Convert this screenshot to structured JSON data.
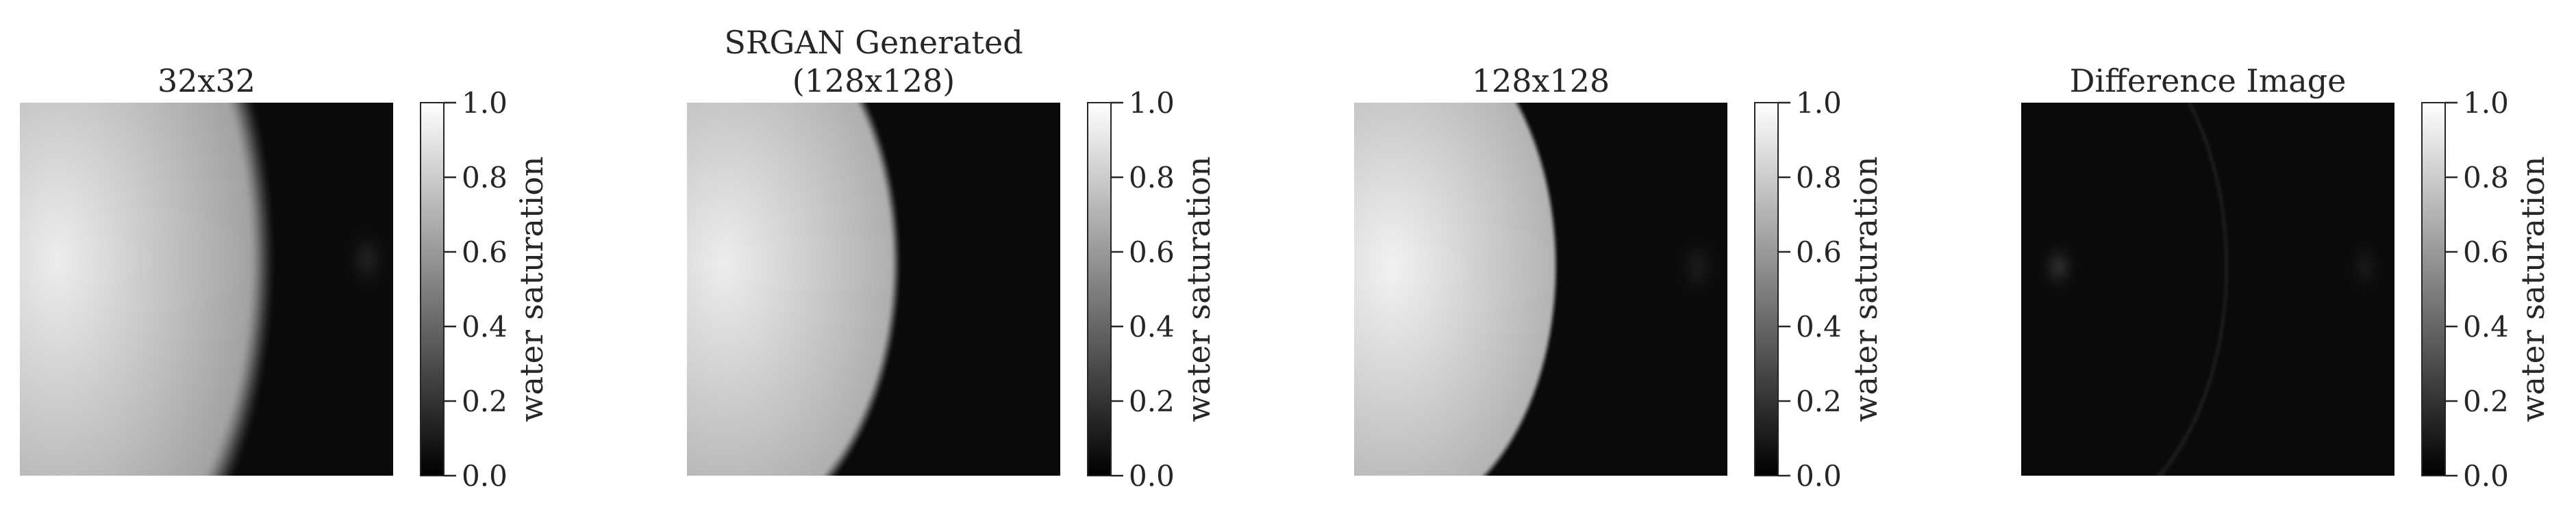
{
  "chart_data": [
    {
      "type": "heatmap",
      "title": "32x32",
      "colorbar": {
        "label": "water saturation",
        "ticks": [
          "0.0",
          "0.2",
          "0.4",
          "0.6",
          "0.8",
          "1.0"
        ],
        "range": [
          0,
          1
        ],
        "colormap": "gray"
      },
      "plume": {
        "center_x": 0.1,
        "center_y": 0.42,
        "radius_x": 0.55,
        "radius_y": 0.95,
        "peak": 0.93,
        "edge": 0.62,
        "blur": 0.07
      },
      "artifact": {
        "x": 0.93,
        "y": 0.42,
        "value": 0.08
      }
    },
    {
      "type": "heatmap",
      "title": "SRGAN Generated\n(128x128)",
      "colorbar": {
        "label": "water saturation",
        "ticks": [
          "0.0",
          "0.2",
          "0.4",
          "0.6",
          "0.8",
          "1.0"
        ],
        "range": [
          0,
          1
        ],
        "colormap": "gray"
      },
      "plume": {
        "center_x": 0.1,
        "center_y": 0.43,
        "radius_x": 0.46,
        "radius_y": 0.72,
        "peak": 0.93,
        "edge": 0.68,
        "blur": 0.035
      },
      "artifact": null
    },
    {
      "type": "heatmap",
      "title": "128x128",
      "colorbar": {
        "label": "water saturation",
        "ticks": [
          "0.0",
          "0.2",
          "0.4",
          "0.6",
          "0.8",
          "1.0"
        ],
        "range": [
          0,
          1
        ],
        "colormap": "gray"
      },
      "plume": {
        "center_x": 0.1,
        "center_y": 0.44,
        "radius_x": 0.44,
        "radius_y": 0.68,
        "peak": 0.95,
        "edge": 0.7,
        "blur": 0.02
      },
      "artifact": {
        "x": 0.92,
        "y": 0.44,
        "value": 0.06
      }
    },
    {
      "type": "heatmap",
      "title": "Difference Image",
      "colorbar": {
        "label": "water saturation",
        "ticks": [
          "0.0",
          "0.2",
          "0.4",
          "0.6",
          "0.8",
          "1.0"
        ],
        "range": [
          0,
          1
        ],
        "colormap": "gray"
      },
      "difference": {
        "arc_center_x": 0.1,
        "arc_center_y": 0.44,
        "arc_radius_x": 0.45,
        "arc_radius_y": 0.7,
        "arc_value": 0.07,
        "hotspot_x": 0.1,
        "hotspot_y": 0.44,
        "hotspot_value": 0.12
      },
      "artifact": {
        "x": 0.92,
        "y": 0.44,
        "value": 0.05
      }
    }
  ]
}
